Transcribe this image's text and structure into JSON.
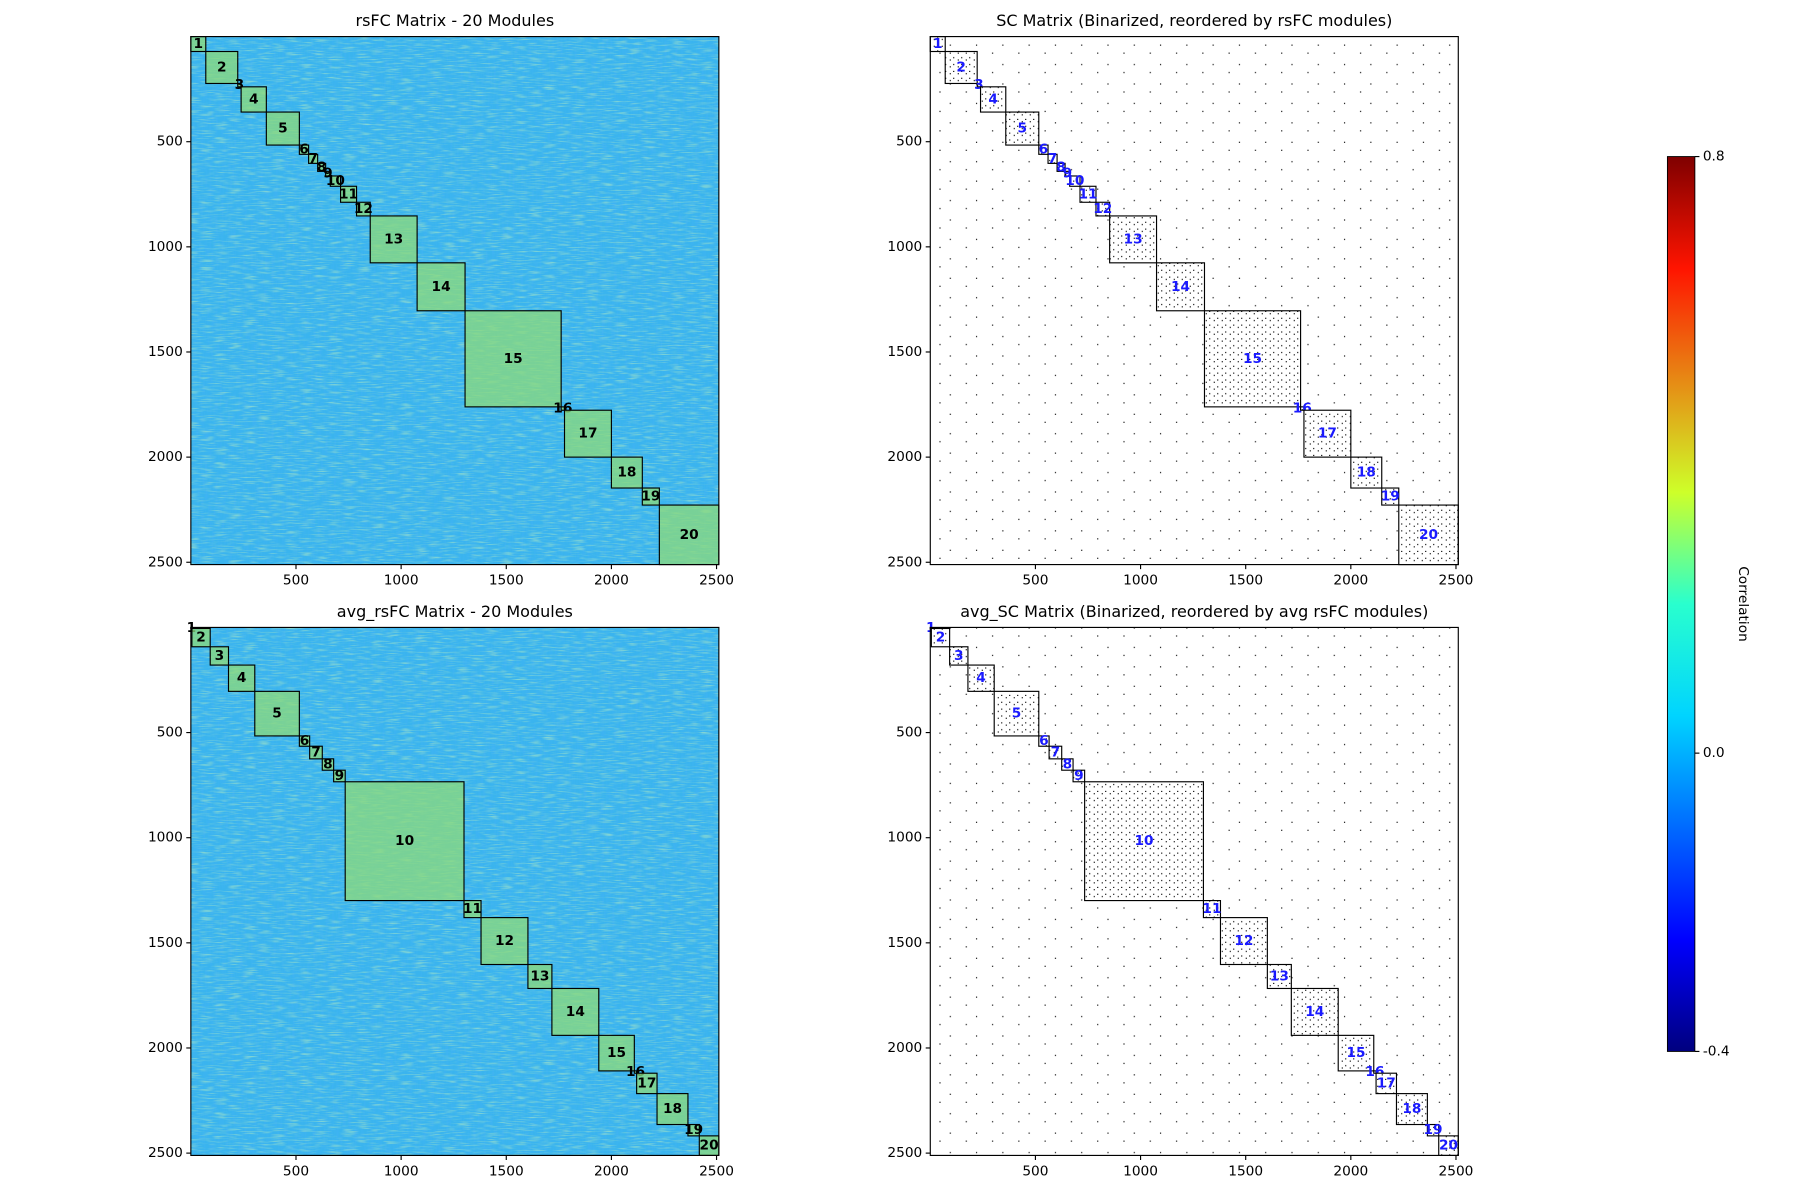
{
  "chart_data": [
    {
      "type": "heatmap",
      "style": "correlation",
      "title": "rsFC Matrix - 20 Modules",
      "xlim": [
        0,
        2511
      ],
      "ylim": [
        2511,
        0
      ],
      "xticks": [
        500,
        1000,
        1500,
        2000,
        2500
      ],
      "yticks": [
        500,
        1000,
        1500,
        2000,
        2500
      ],
      "matrix_color": "#3ab4ee",
      "module_color": "#8edb7a",
      "label_color": "#000000",
      "modules": {
        "labels": [
          1,
          2,
          3,
          4,
          5,
          6,
          7,
          8,
          9,
          10,
          11,
          12,
          13,
          14,
          15,
          16,
          17,
          18,
          19,
          20
        ],
        "bounds": [
          0,
          71,
          223,
          239,
          359,
          516,
          560,
          603,
          641,
          663,
          712,
          788,
          853,
          1076,
          1304,
          1761,
          1777,
          2000,
          2147,
          2228,
          2511
        ]
      }
    },
    {
      "type": "heatmap",
      "style": "binary",
      "title": "SC Matrix (Binarized, reordered by rsFC modules)",
      "xlim": [
        0,
        2511
      ],
      "ylim": [
        2511,
        0
      ],
      "xticks": [
        500,
        1000,
        1500,
        2000,
        2500
      ],
      "yticks": [
        500,
        1000,
        1500,
        2000,
        2500
      ],
      "matrix_color": "#ffffff",
      "module_color": "#ffffff",
      "label_color": "#1a1aff",
      "modules": {
        "labels": [
          1,
          2,
          3,
          4,
          5,
          6,
          7,
          8,
          9,
          10,
          11,
          12,
          13,
          14,
          15,
          16,
          17,
          18,
          19,
          20
        ],
        "bounds": [
          0,
          71,
          223,
          239,
          359,
          516,
          560,
          603,
          641,
          663,
          712,
          788,
          853,
          1076,
          1304,
          1761,
          1777,
          2000,
          2147,
          2228,
          2511
        ]
      }
    },
    {
      "type": "heatmap",
      "style": "correlation",
      "title": "avg_rsFC Matrix - 20 Modules",
      "xlim": [
        0,
        2511
      ],
      "ylim": [
        2511,
        0
      ],
      "xticks": [
        500,
        1000,
        1500,
        2000,
        2500
      ],
      "yticks": [
        500,
        1000,
        1500,
        2000,
        2500
      ],
      "matrix_color": "#3ab4ee",
      "module_color": "#8edb7a",
      "label_color": "#000000",
      "modules": {
        "labels": [
          1,
          2,
          3,
          4,
          5,
          6,
          7,
          8,
          9,
          10,
          11,
          12,
          13,
          14,
          15,
          16,
          17,
          18,
          19,
          20
        ],
        "bounds": [
          0,
          5,
          92,
          179,
          304,
          516,
          565,
          625,
          679,
          734,
          1299,
          1380,
          1603,
          1717,
          1940,
          2109,
          2120,
          2217,
          2364,
          2418,
          2511
        ]
      }
    },
    {
      "type": "heatmap",
      "style": "binary",
      "title": "avg_SC Matrix (Binarized, reordered by avg rsFC modules)",
      "xlim": [
        0,
        2511
      ],
      "ylim": [
        2511,
        0
      ],
      "xticks": [
        500,
        1000,
        1500,
        2000,
        2500
      ],
      "yticks": [
        500,
        1000,
        1500,
        2000,
        2500
      ],
      "matrix_color": "#ffffff",
      "module_color": "#ffffff",
      "label_color": "#1a1aff",
      "modules": {
        "labels": [
          1,
          2,
          3,
          4,
          5,
          6,
          7,
          8,
          9,
          10,
          11,
          12,
          13,
          14,
          15,
          16,
          17,
          18,
          19,
          20
        ],
        "bounds": [
          0,
          5,
          92,
          179,
          304,
          516,
          565,
          625,
          679,
          734,
          1299,
          1380,
          1603,
          1717,
          1940,
          2109,
          2120,
          2217,
          2364,
          2418,
          2511
        ]
      }
    },
    {
      "type": "colorbar",
      "label": "Correlation",
      "colormap": "jet",
      "ylim": [
        -0.4,
        0.8
      ],
      "yticks": [
        {
          "value": -0.4,
          "label": "-0.4"
        },
        {
          "value": 0.0,
          "label": "0.0"
        },
        {
          "value": 0.8,
          "label": "0.8"
        }
      ]
    }
  ]
}
